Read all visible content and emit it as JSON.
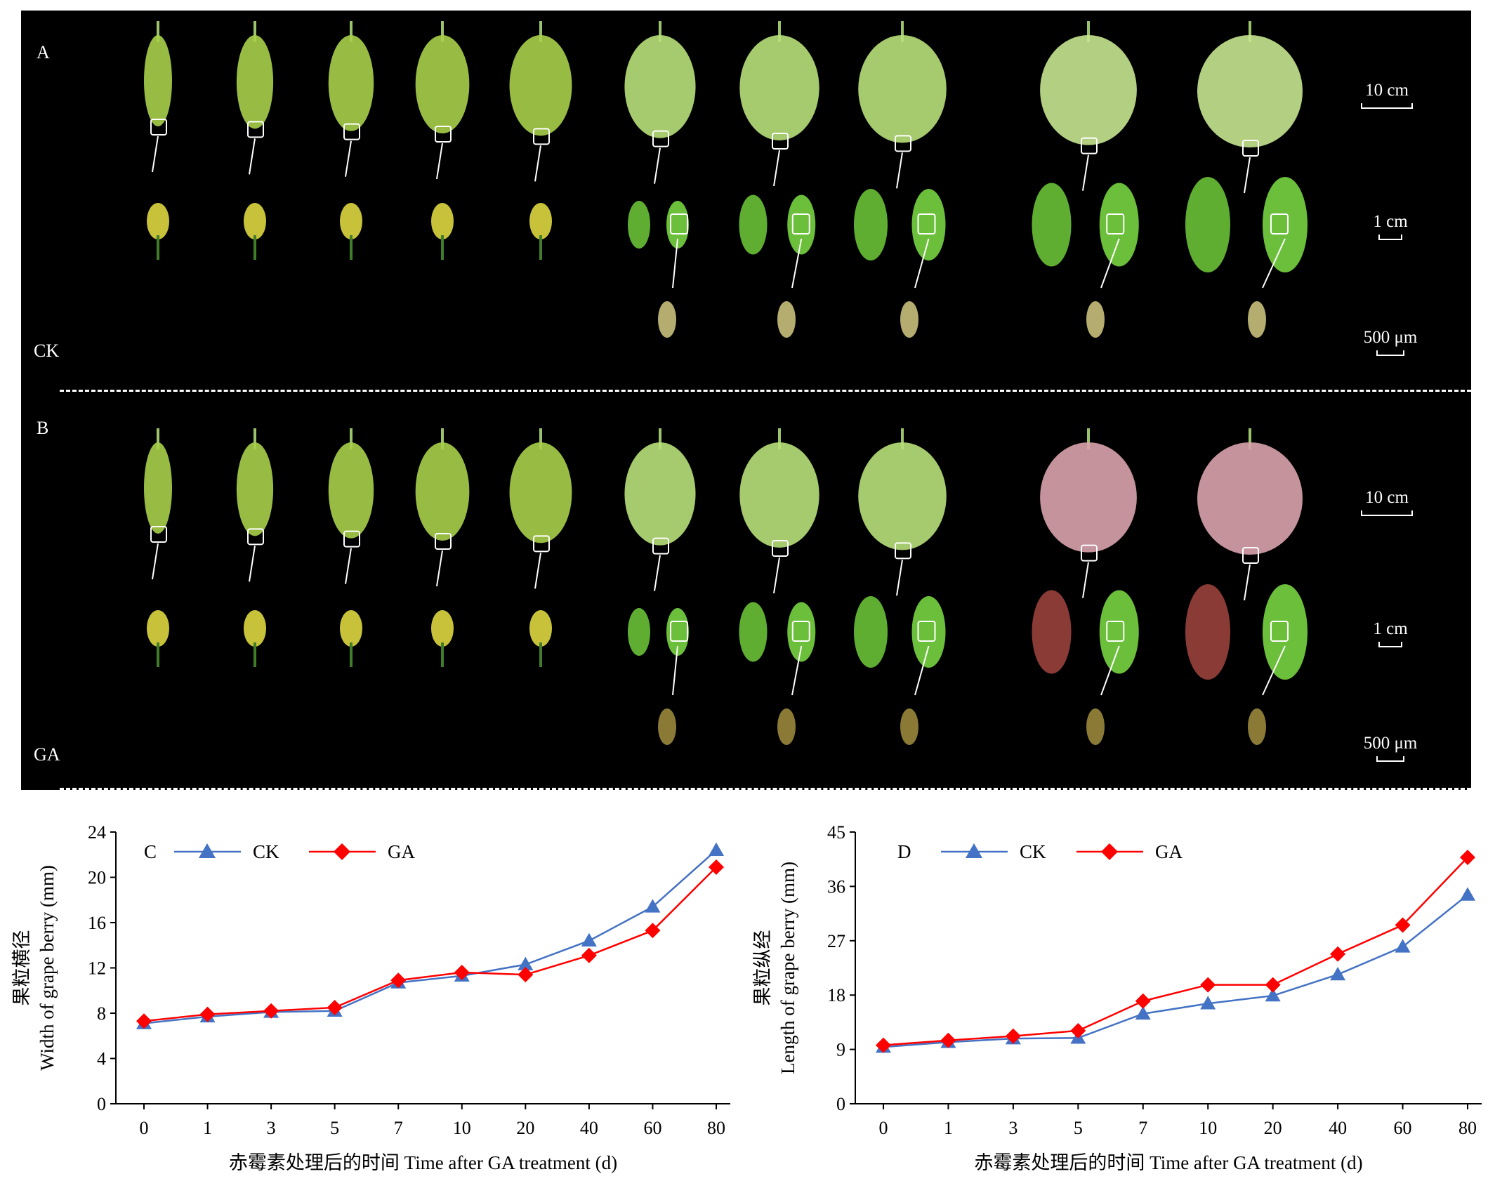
{
  "photo_panels": [
    {
      "label": "A",
      "group": "CK",
      "scales": [
        "10 cm",
        "1 cm",
        "500 μm"
      ]
    },
    {
      "label": "B",
      "group": "GA",
      "scales": [
        "10 cm",
        "1 cm",
        "500 μm"
      ]
    }
  ],
  "colors": {
    "ck": "#4472C4",
    "ga": "#FF0000",
    "background": "#000000"
  },
  "chart_data": [
    {
      "type": "line",
      "panel_label": "C",
      "categories": [
        "0",
        "1",
        "3",
        "5",
        "7",
        "10",
        "20",
        "40",
        "60",
        "80"
      ],
      "series": [
        {
          "name": "CK",
          "marker": "triangle",
          "values": [
            7.1,
            7.7,
            8.1,
            8.2,
            10.7,
            11.3,
            12.3,
            14.4,
            17.4,
            22.4
          ]
        },
        {
          "name": "GA",
          "marker": "diamond",
          "values": [
            7.3,
            7.9,
            8.2,
            8.5,
            10.9,
            11.6,
            11.4,
            13.1,
            15.3,
            20.9
          ]
        }
      ],
      "ylabel_cn": "果粒横径",
      "ylabel_en": "Width of grape berry (mm)",
      "xlabel": "赤霉素处理后的时间 Time after GA treatment (d)",
      "ylim": [
        0,
        24
      ],
      "yticks": [
        0,
        4,
        8,
        12,
        16,
        20,
        24
      ],
      "legend": "top-left"
    },
    {
      "type": "line",
      "panel_label": "D",
      "categories": [
        "0",
        "1",
        "3",
        "5",
        "7",
        "10",
        "20",
        "40",
        "60",
        "80"
      ],
      "series": [
        {
          "name": "CK",
          "marker": "triangle",
          "values": [
            9.4,
            10.2,
            10.8,
            10.9,
            14.9,
            16.6,
            17.9,
            21.4,
            26.0,
            34.6
          ]
        },
        {
          "name": "GA",
          "marker": "diamond",
          "values": [
            9.7,
            10.5,
            11.2,
            12.1,
            17.0,
            19.7,
            19.7,
            24.8,
            29.6,
            40.8
          ]
        }
      ],
      "ylabel_cn": "果粒纵经",
      "ylabel_en": "Length of grape berry (mm)",
      "xlabel": "赤霉素处理后的时间 Time after GA treatment (d)",
      "ylim": [
        0,
        45
      ],
      "yticks": [
        0,
        9,
        18,
        27,
        36,
        45
      ],
      "legend": "top-left"
    }
  ]
}
